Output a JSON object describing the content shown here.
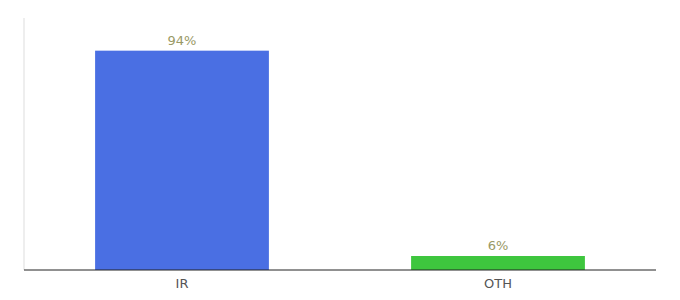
{
  "chart_data": {
    "type": "bar",
    "categories": [
      "IR",
      "OTH"
    ],
    "values": [
      94,
      6
    ],
    "value_labels": [
      "94%",
      "6%"
    ],
    "colors": [
      "#4a6fe3",
      "#3ec63e"
    ],
    "ylim": [
      0,
      108
    ],
    "data_labels": true,
    "tick_labels": "x",
    "grid": false
  }
}
